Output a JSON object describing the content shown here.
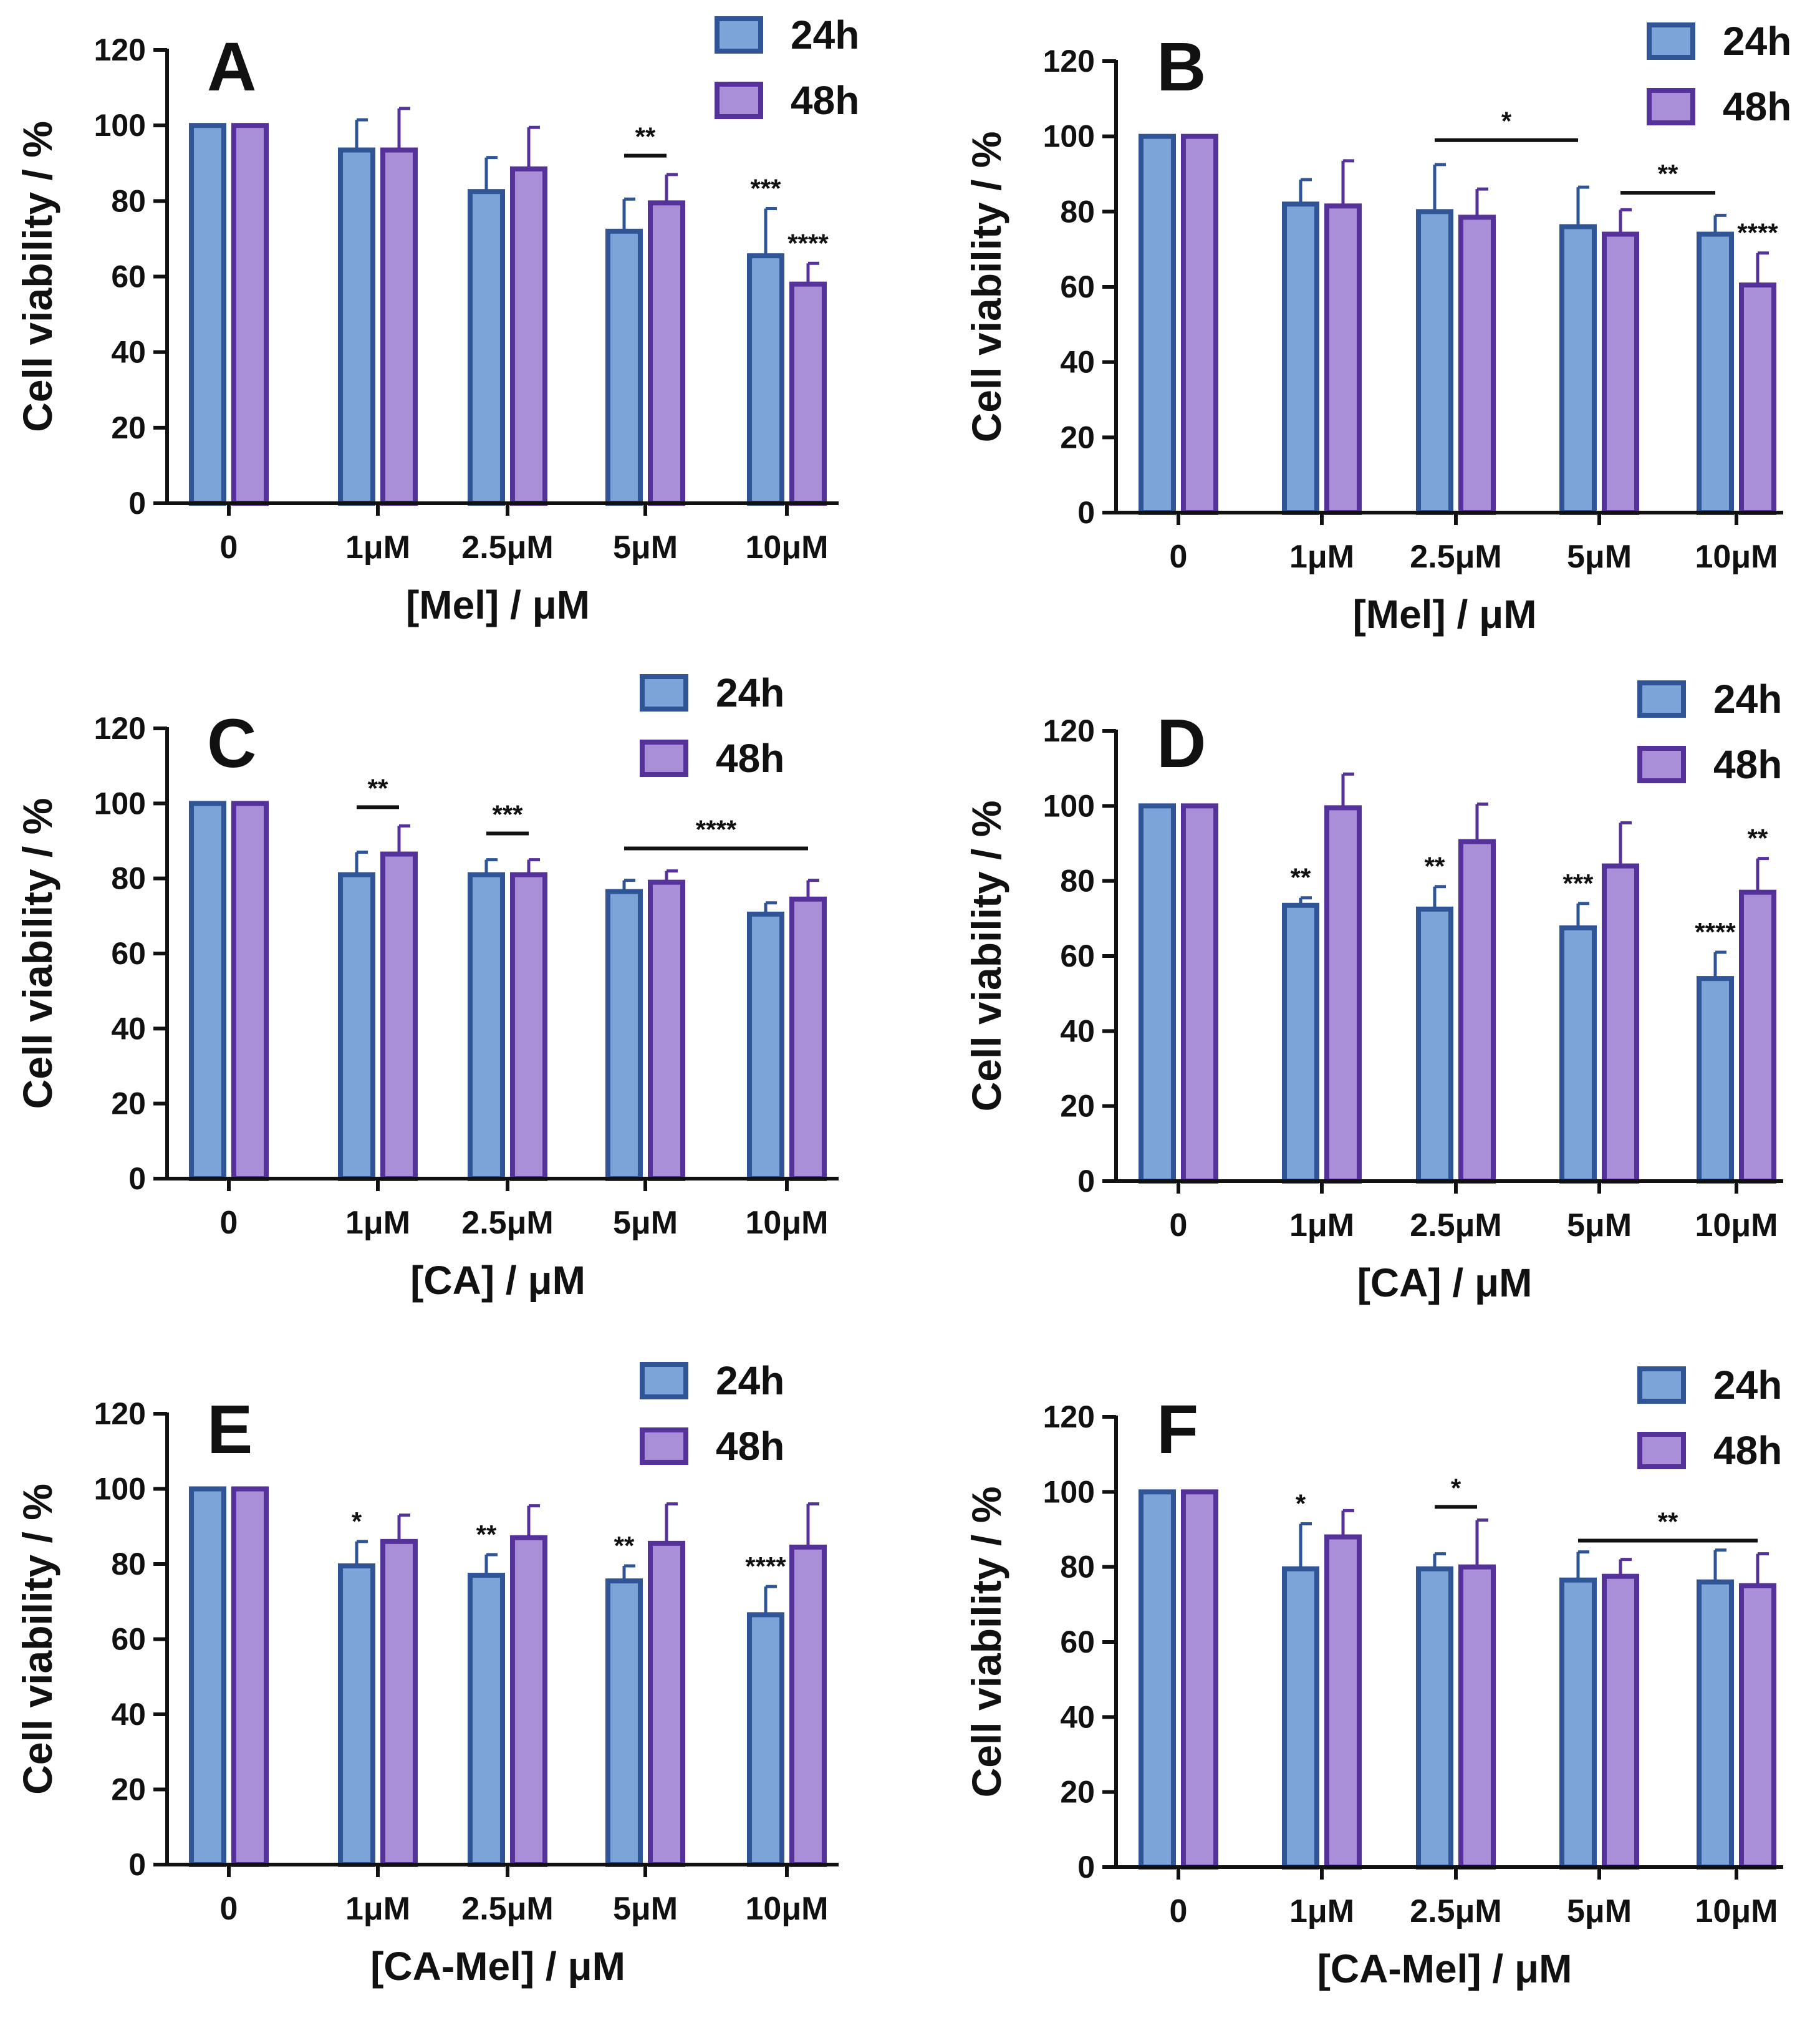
{
  "figure": {
    "background": "#ffffff"
  },
  "colors": {
    "s24_fill": "#7da4d8",
    "s24_stroke": "#2f5597",
    "s48_fill": "#a98fd8",
    "s48_stroke": "#55319a",
    "axis": "#111111"
  },
  "chart_data": [
    {
      "id": "A",
      "type": "bar",
      "panel_letter": "A",
      "categories": [
        "0",
        "1μM",
        "2.5μM",
        "5μM",
        "10μM"
      ],
      "series": [
        {
          "name": "24h",
          "values": [
            100,
            93.5,
            82.5,
            72,
            65.5
          ],
          "errors": [
            0,
            8,
            9,
            8.5,
            12.5
          ]
        },
        {
          "name": "48h",
          "values": [
            100,
            93.5,
            88.5,
            79.5,
            58
          ],
          "errors": [
            0,
            11,
            11,
            7.5,
            5.5
          ]
        }
      ],
      "xlabel": "[Mel] / μM",
      "ylabel": "Cell viability / %",
      "ylim": [
        0,
        120
      ],
      "yticks": [
        0,
        20,
        40,
        60,
        80,
        100,
        120
      ],
      "legend": "top-right",
      "annotations": [
        {
          "type": "bracket",
          "from": [
            3,
            0
          ],
          "to": [
            3,
            1
          ],
          "y": 92,
          "text": "**"
        },
        {
          "type": "star",
          "cat": 4,
          "series": 0,
          "text": "***"
        },
        {
          "type": "star",
          "cat": 4,
          "series": 1,
          "text": "****"
        }
      ]
    },
    {
      "id": "B",
      "type": "bar",
      "panel_letter": "B",
      "categories": [
        "0",
        "1μM",
        "2.5μM",
        "5μM",
        "10μM"
      ],
      "series": [
        {
          "name": "24h",
          "values": [
            100,
            82,
            80,
            76,
            74
          ],
          "errors": [
            0,
            6.5,
            12.5,
            10.5,
            5
          ]
        },
        {
          "name": "48h",
          "values": [
            100,
            81.5,
            78.5,
            74,
            60.5
          ],
          "errors": [
            0,
            12,
            7.5,
            6.5,
            8.5
          ]
        }
      ],
      "xlabel": "[Mel] / μM",
      "ylabel": "Cell viability / %",
      "ylim": [
        0,
        120
      ],
      "yticks": [
        0,
        20,
        40,
        60,
        80,
        100,
        120
      ],
      "legend": "top-right",
      "annotations": [
        {
          "type": "bracket",
          "from": [
            2,
            0
          ],
          "to": [
            3,
            0
          ],
          "y": 99,
          "text": "*"
        },
        {
          "type": "bracket",
          "from": [
            3,
            1
          ],
          "to": [
            4,
            0
          ],
          "y": 85,
          "text": "**"
        },
        {
          "type": "star",
          "cat": 4,
          "series": 1,
          "text": "****"
        }
      ]
    },
    {
      "id": "C",
      "type": "bar",
      "panel_letter": "C",
      "categories": [
        "0",
        "1μM",
        "2.5μM",
        "5μM",
        "10μM"
      ],
      "series": [
        {
          "name": "24h",
          "values": [
            100,
            81,
            81,
            76.5,
            70.5
          ],
          "errors": [
            0,
            6,
            4,
            3,
            3
          ]
        },
        {
          "name": "48h",
          "values": [
            100,
            86.5,
            81,
            79,
            74.5
          ],
          "errors": [
            0,
            7.5,
            4,
            3,
            5
          ]
        }
      ],
      "xlabel": "[CA] / μM",
      "ylabel": "Cell viability / %",
      "ylim": [
        0,
        120
      ],
      "yticks": [
        0,
        20,
        40,
        60,
        80,
        100,
        120
      ],
      "legend": "top-right",
      "annotations": [
        {
          "type": "bracket",
          "from": [
            1,
            0
          ],
          "to": [
            1,
            1
          ],
          "y": 99,
          "text": "**"
        },
        {
          "type": "bracket",
          "from": [
            2,
            0
          ],
          "to": [
            2,
            1
          ],
          "y": 92,
          "text": "***"
        },
        {
          "type": "bracket",
          "from": [
            3,
            0
          ],
          "to": [
            4,
            1
          ],
          "y": 88,
          "text": "****"
        }
      ]
    },
    {
      "id": "D",
      "type": "bar",
      "panel_letter": "D",
      "categories": [
        "0",
        "1μM",
        "2.5μM",
        "5μM",
        "10μM"
      ],
      "series": [
        {
          "name": "24h",
          "values": [
            100,
            73.5,
            72.5,
            67.5,
            54
          ],
          "errors": [
            0,
            2,
            6,
            6.5,
            7
          ]
        },
        {
          "name": "48h",
          "values": [
            100,
            99.5,
            90.5,
            84,
            77
          ],
          "errors": [
            0,
            9,
            10,
            11.5,
            9
          ]
        }
      ],
      "xlabel": "[CA] / μM",
      "ylabel": "Cell viability / %",
      "ylim": [
        0,
        120
      ],
      "yticks": [
        0,
        20,
        40,
        60,
        80,
        100,
        120
      ],
      "legend": "top-right",
      "annotations": [
        {
          "type": "star",
          "cat": 1,
          "series": 0,
          "text": "**"
        },
        {
          "type": "star",
          "cat": 2,
          "series": 0,
          "text": "**"
        },
        {
          "type": "star",
          "cat": 3,
          "series": 0,
          "text": "***"
        },
        {
          "type": "star",
          "cat": 4,
          "series": 0,
          "text": "****"
        },
        {
          "type": "star",
          "cat": 4,
          "series": 1,
          "text": "**"
        }
      ]
    },
    {
      "id": "E",
      "type": "bar",
      "panel_letter": "E",
      "categories": [
        "0",
        "1μM",
        "2.5μM",
        "5μM",
        "10μM"
      ],
      "series": [
        {
          "name": "24h",
          "values": [
            100,
            79.5,
            77,
            75.5,
            66.5
          ],
          "errors": [
            0,
            6.5,
            5.5,
            4,
            7.5
          ]
        },
        {
          "name": "48h",
          "values": [
            100,
            86,
            87,
            85.5,
            84.5
          ],
          "errors": [
            0,
            7,
            8.5,
            10.5,
            11.5
          ]
        }
      ],
      "xlabel": "[CA-Mel] / μM",
      "ylabel": "Cell viability / %",
      "ylim": [
        0,
        120
      ],
      "yticks": [
        0,
        20,
        40,
        60,
        80,
        100,
        120
      ],
      "legend": "top-right",
      "annotations": [
        {
          "type": "star",
          "cat": 1,
          "series": 0,
          "text": "*"
        },
        {
          "type": "star",
          "cat": 2,
          "series": 0,
          "text": "**"
        },
        {
          "type": "star",
          "cat": 3,
          "series": 0,
          "text": "**"
        },
        {
          "type": "star",
          "cat": 4,
          "series": 0,
          "text": "****"
        }
      ]
    },
    {
      "id": "F",
      "type": "bar",
      "panel_letter": "F",
      "categories": [
        "0",
        "1μM",
        "2.5μM",
        "5μM",
        "10μM"
      ],
      "series": [
        {
          "name": "24h",
          "values": [
            100,
            79.5,
            79.5,
            76.5,
            76
          ],
          "errors": [
            0,
            12,
            4,
            7.5,
            8.5
          ]
        },
        {
          "name": "48h",
          "values": [
            100,
            88,
            80,
            77.5,
            75
          ],
          "errors": [
            0,
            7,
            12.5,
            4.5,
            8.5
          ]
        }
      ],
      "xlabel": "[CA-Mel] / μM",
      "ylabel": "Cell viability / %",
      "ylim": [
        0,
        120
      ],
      "yticks": [
        0,
        20,
        40,
        60,
        80,
        100,
        120
      ],
      "legend": "top-right",
      "annotations": [
        {
          "type": "star",
          "cat": 1,
          "series": 0,
          "text": "*"
        },
        {
          "type": "bracket",
          "from": [
            2,
            0
          ],
          "to": [
            2,
            1
          ],
          "y": 96,
          "text": "*"
        },
        {
          "type": "bracket",
          "from": [
            3,
            0
          ],
          "to": [
            4,
            1
          ],
          "y": 87,
          "text": "**"
        }
      ]
    }
  ]
}
